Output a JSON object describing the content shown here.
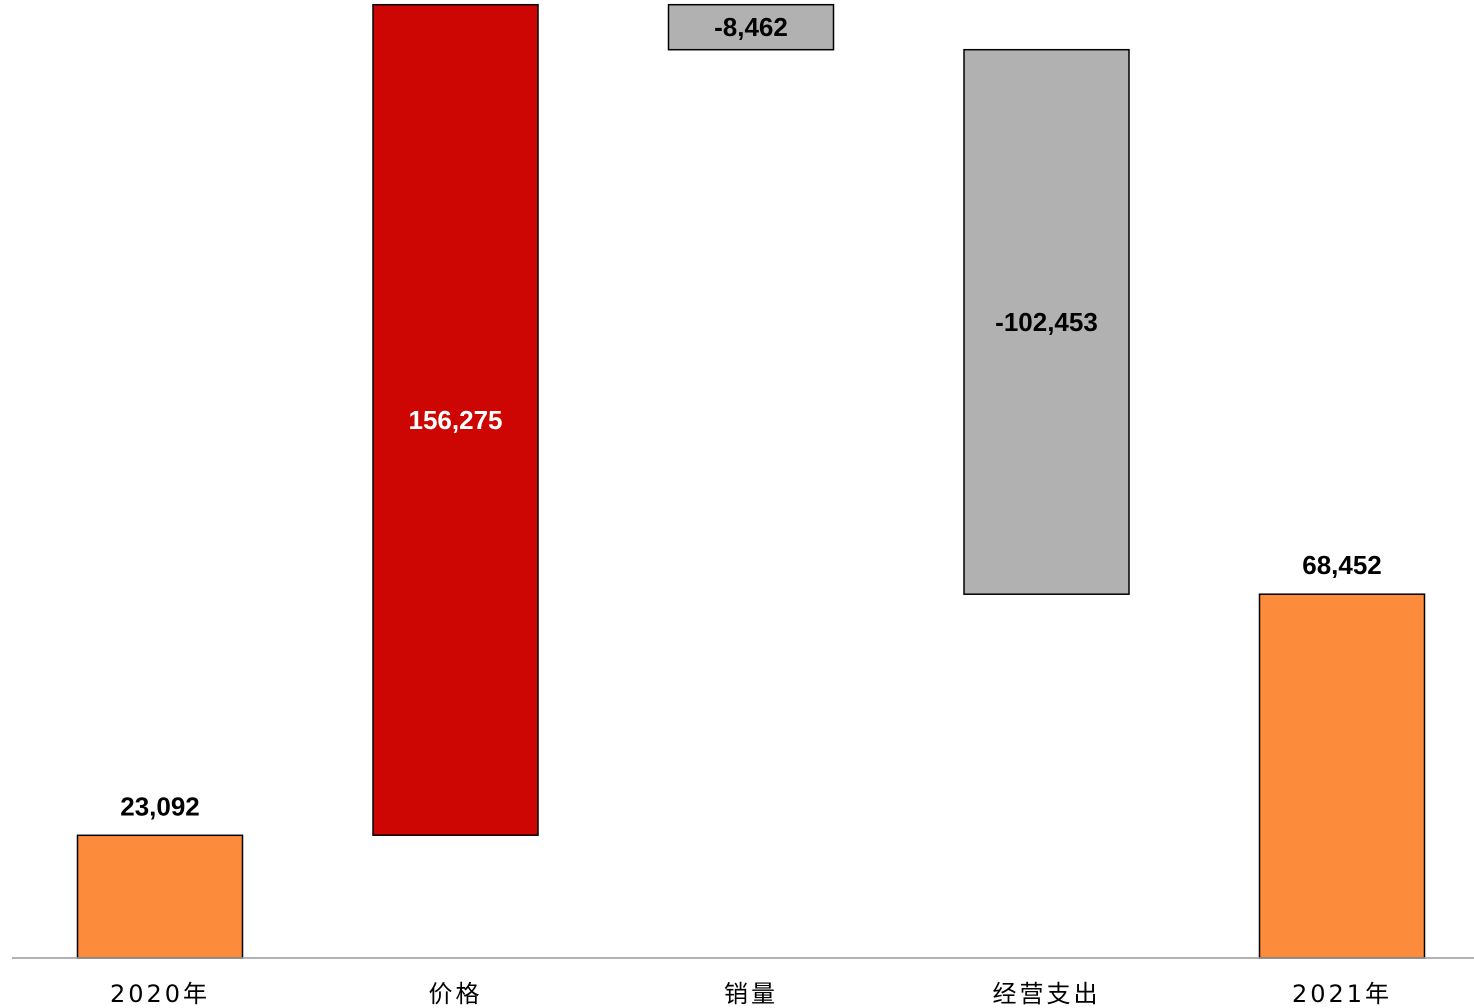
{
  "chart_data": {
    "type": "bar",
    "subtype": "waterfall",
    "title": "",
    "xlabel": "",
    "ylabel": "",
    "categories": [
      "2020年",
      "价格",
      "销量",
      "经营支出",
      "2021年"
    ],
    "values": [
      23092,
      156275,
      -8462,
      -102453,
      68452
    ],
    "value_labels": [
      "23,092",
      "156,275",
      "-8,462",
      "-102,453",
      "68,452"
    ],
    "kinds": [
      "total",
      "delta",
      "delta",
      "delta",
      "total"
    ],
    "ylim": [
      0,
      178000
    ],
    "grid": false,
    "legend": "none",
    "colors": {
      "total": "#fd8b3c",
      "increase": "#cd0604",
      "decrease": "#b1b1b1",
      "label_on_increase": "#ffffff",
      "label_default": "#000000"
    }
  }
}
